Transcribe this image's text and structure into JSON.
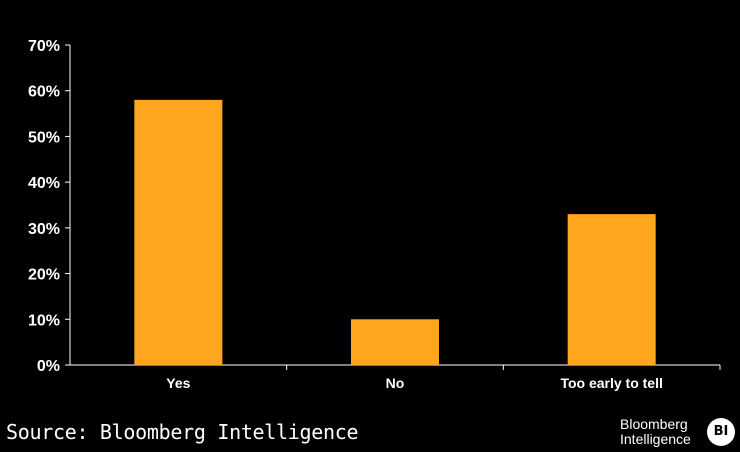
{
  "chart_data": {
    "type": "bar",
    "title": "",
    "xlabel": "",
    "ylabel": "",
    "categories": [
      "Yes",
      "No",
      "Too early to tell"
    ],
    "values": [
      58,
      10,
      33
    ],
    "ylim": [
      0,
      70
    ],
    "yticks": [
      0,
      10,
      20,
      30,
      40,
      50,
      60,
      70
    ],
    "ytick_labels": [
      "0%",
      "10%",
      "20%",
      "30%",
      "40%",
      "50%",
      "60%",
      "70%"
    ],
    "bar_color": "#FFA51E",
    "background": "#000000",
    "text_color": "#FFFFFF",
    "grid": false
  },
  "footer": {
    "source": "Source: Bloomberg Intelligence",
    "brand_line1": "Bloomberg",
    "brand_line2": "Intelligence",
    "brand_badge": "BI"
  }
}
